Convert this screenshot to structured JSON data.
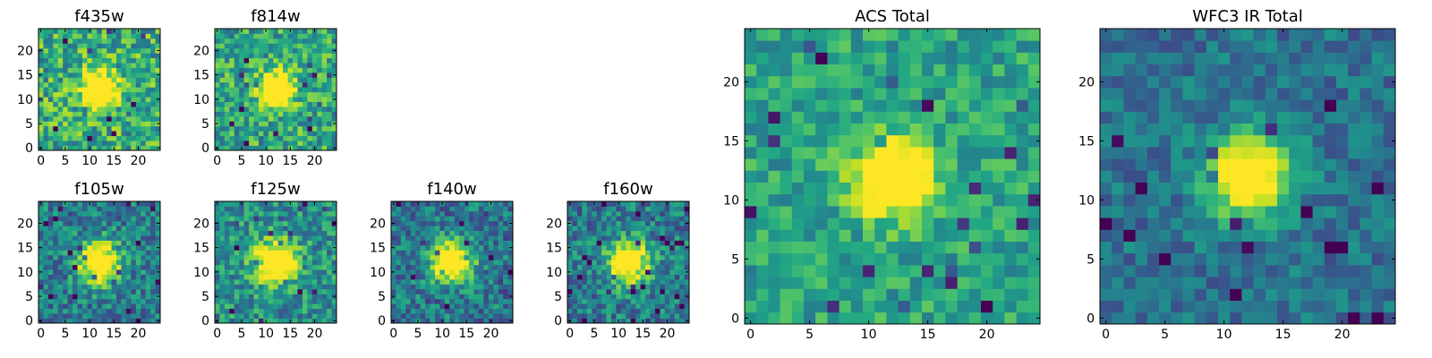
{
  "chart_data": [
    {
      "type": "heatmap",
      "title": "f435w",
      "xticks": [
        "0",
        "5",
        "10",
        "15",
        "20"
      ],
      "yticks": [
        "0",
        "5",
        "10",
        "15",
        "20"
      ],
      "xlim": [
        -0.5,
        24.5
      ],
      "ylim": [
        -0.5,
        24.5
      ],
      "grid": false,
      "colormap": "viridis",
      "source_center": [
        12,
        12
      ],
      "source_width": 2.5,
      "noise": 0.55,
      "background": 0.62,
      "seed": 11
    },
    {
      "type": "heatmap",
      "title": "f814w",
      "xticks": [
        "0",
        "5",
        "10",
        "15",
        "20"
      ],
      "yticks": [
        "0",
        "5",
        "10",
        "15",
        "20"
      ],
      "xlim": [
        -0.5,
        24.5
      ],
      "ylim": [
        -0.5,
        24.5
      ],
      "grid": false,
      "colormap": "viridis",
      "source_center": [
        12,
        12
      ],
      "source_width": 2.5,
      "noise": 0.5,
      "background": 0.6,
      "seed": 23
    },
    {
      "type": "heatmap",
      "title": "f105w",
      "xticks": [
        "0",
        "5",
        "10",
        "15",
        "20"
      ],
      "yticks": [
        "0",
        "5",
        "10",
        "15",
        "20"
      ],
      "xlim": [
        -0.5,
        24.5
      ],
      "ylim": [
        -0.5,
        24.5
      ],
      "grid": false,
      "colormap": "viridis",
      "source_center": [
        12,
        12
      ],
      "source_width": 3.0,
      "noise": 0.45,
      "background": 0.42,
      "seed": 37
    },
    {
      "type": "heatmap",
      "title": "f125w",
      "xticks": [
        "0",
        "5",
        "10",
        "15",
        "20"
      ],
      "yticks": [
        "0",
        "5",
        "10",
        "15",
        "20"
      ],
      "xlim": [
        -0.5,
        24.5
      ],
      "ylim": [
        -0.5,
        24.5
      ],
      "grid": false,
      "colormap": "viridis",
      "source_center": [
        12,
        12
      ],
      "source_width": 3.0,
      "noise": 0.45,
      "background": 0.5,
      "seed": 41
    },
    {
      "type": "heatmap",
      "title": "f140w",
      "xticks": [
        "0",
        "5",
        "10",
        "15",
        "20"
      ],
      "yticks": [
        "0",
        "5",
        "10",
        "15",
        "20"
      ],
      "xlim": [
        -0.5,
        24.5
      ],
      "ylim": [
        -0.5,
        24.5
      ],
      "grid": false,
      "colormap": "viridis",
      "source_center": [
        12,
        12
      ],
      "source_width": 3.0,
      "noise": 0.45,
      "background": 0.4,
      "seed": 53
    },
    {
      "type": "heatmap",
      "title": "f160w",
      "xticks": [
        "0",
        "5",
        "10",
        "15",
        "20"
      ],
      "yticks": [
        "0",
        "5",
        "10",
        "15",
        "20"
      ],
      "xlim": [
        -0.5,
        24.5
      ],
      "ylim": [
        -0.5,
        24.5
      ],
      "grid": false,
      "colormap": "viridis",
      "source_center": [
        12,
        12
      ],
      "source_width": 3.0,
      "noise": 0.45,
      "background": 0.42,
      "seed": 67
    },
    {
      "type": "heatmap",
      "title": "ACS Total",
      "xticks": [
        "0",
        "5",
        "10",
        "15",
        "20"
      ],
      "yticks": [
        "0",
        "5",
        "10",
        "15",
        "20"
      ],
      "xlim": [
        -0.5,
        24.5
      ],
      "ylim": [
        -0.5,
        24.5
      ],
      "grid": false,
      "colormap": "viridis",
      "source_center": [
        12,
        12
      ],
      "source_width": 2.2,
      "noise": 0.35,
      "background": 0.58,
      "seed": 71
    },
    {
      "type": "heatmap",
      "title": "WFC3 IR Total",
      "xticks": [
        "0",
        "5",
        "10",
        "15",
        "20"
      ],
      "yticks": [
        "0",
        "5",
        "10",
        "15",
        "20"
      ],
      "xlim": [
        -0.5,
        24.5
      ],
      "ylim": [
        -0.5,
        24.5
      ],
      "grid": false,
      "colormap": "viridis",
      "source_center": [
        12,
        12
      ],
      "source_width": 2.4,
      "noise": 0.3,
      "background": 0.38,
      "seed": 83
    }
  ]
}
